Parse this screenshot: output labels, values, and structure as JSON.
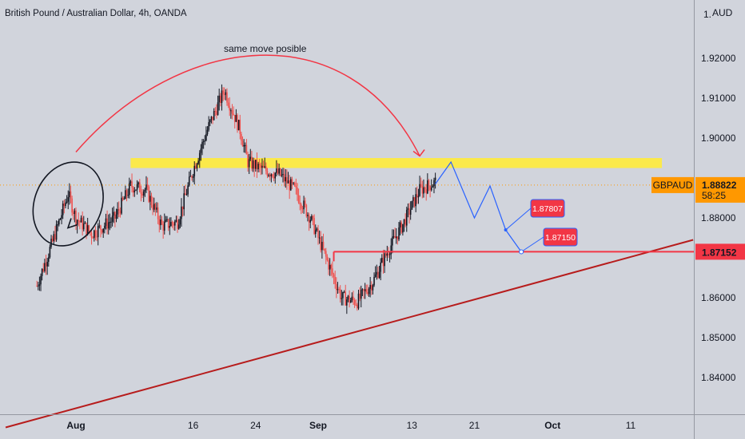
{
  "header": {
    "title": "British Pound / Australian Dollar, 4h, OANDA"
  },
  "price_axis": {
    "currency": "AUD",
    "top_label": "1.",
    "tick_values": [
      "1.92000",
      "1.91000",
      "1.90000",
      "1.88000",
      "1.86000",
      "1.85000",
      "1.84000"
    ],
    "current_symbol": "GBPAUD",
    "current_price": "1.88822",
    "countdown": "58:25",
    "level_price": "1.87152"
  },
  "time_axis": {
    "labels": [
      "Aug",
      "16",
      "24",
      "Sep",
      "13",
      "21",
      "Oct",
      "11"
    ]
  },
  "annotations": {
    "note": "same move posible",
    "target_label_1": "1.87807",
    "target_label_2": "1.87150"
  },
  "colors": {
    "background": "#d1d4dc",
    "bull": "#131722",
    "bear": "#ef5350",
    "zone": "#ffeb3b",
    "level": "#f23645",
    "trendline": "#b71c1c",
    "projection": "#2962ff",
    "price_tag": "#ff9800"
  },
  "chart_data": {
    "type": "candlestick",
    "symbol": "GBPAUD",
    "interval": "4h",
    "ylim": [
      1.833,
      1.928
    ],
    "x_labels": [
      "Aug",
      "16",
      "24",
      "Sep",
      "13",
      "21",
      "Oct",
      "11"
    ],
    "key_points": [
      {
        "x": "Jul 27",
        "y": 1.863
      },
      {
        "x": "Jul 29",
        "y": 1.874
      },
      {
        "x": "Jul 31",
        "y": 1.886
      },
      {
        "x": "Aug 1",
        "y": 1.88
      },
      {
        "x": "Aug 3",
        "y": 1.876
      },
      {
        "x": "Aug 6",
        "y": 1.88
      },
      {
        "x": "Aug 8",
        "y": 1.888
      },
      {
        "x": "Aug 10",
        "y": 1.887
      },
      {
        "x": "Aug 12",
        "y": 1.878
      },
      {
        "x": "Aug 14",
        "y": 1.879
      },
      {
        "x": "Aug 16",
        "y": 1.892
      },
      {
        "x": "Aug 18",
        "y": 1.903
      },
      {
        "x": "Aug 20",
        "y": 1.912
      },
      {
        "x": "Aug 22",
        "y": 1.902
      },
      {
        "x": "Aug 23",
        "y": 1.894
      },
      {
        "x": "Aug 25",
        "y": 1.892
      },
      {
        "x": "Aug 27",
        "y": 1.891
      },
      {
        "x": "Aug 29",
        "y": 1.887
      },
      {
        "x": "Aug 31",
        "y": 1.88
      },
      {
        "x": "Sep 2",
        "y": 1.87
      },
      {
        "x": "Sep 4",
        "y": 1.86
      },
      {
        "x": "Sep 6",
        "y": 1.859
      },
      {
        "x": "Sep 8",
        "y": 1.864
      },
      {
        "x": "Sep 10",
        "y": 1.872
      },
      {
        "x": "Sep 12",
        "y": 1.879
      },
      {
        "x": "Sep 14",
        "y": 1.887
      },
      {
        "x": "Sep 16",
        "y": 1.889
      }
    ],
    "projection": [
      {
        "x": "Sep 16",
        "y": 1.8885
      },
      {
        "x": "Sep 18",
        "y": 1.894
      },
      {
        "x": "Sep 21",
        "y": 1.88
      },
      {
        "x": "Sep 23",
        "y": 1.888
      },
      {
        "x": "Sep 25",
        "y": 1.877
      },
      {
        "x": "Sep 27",
        "y": 1.8715
      }
    ],
    "resistance_zone": [
      1.8925,
      1.895
    ],
    "horizontal_level": 1.87152,
    "level_start": "Sep 3",
    "trendline": [
      {
        "x": "Jul 23",
        "y": 1.8275
      },
      {
        "x": "Oct 19",
        "y": 1.8745
      }
    ],
    "annotation_arc": {
      "from": "Aug 1",
      "to": "Sep 14",
      "text": "same move posible"
    }
  }
}
